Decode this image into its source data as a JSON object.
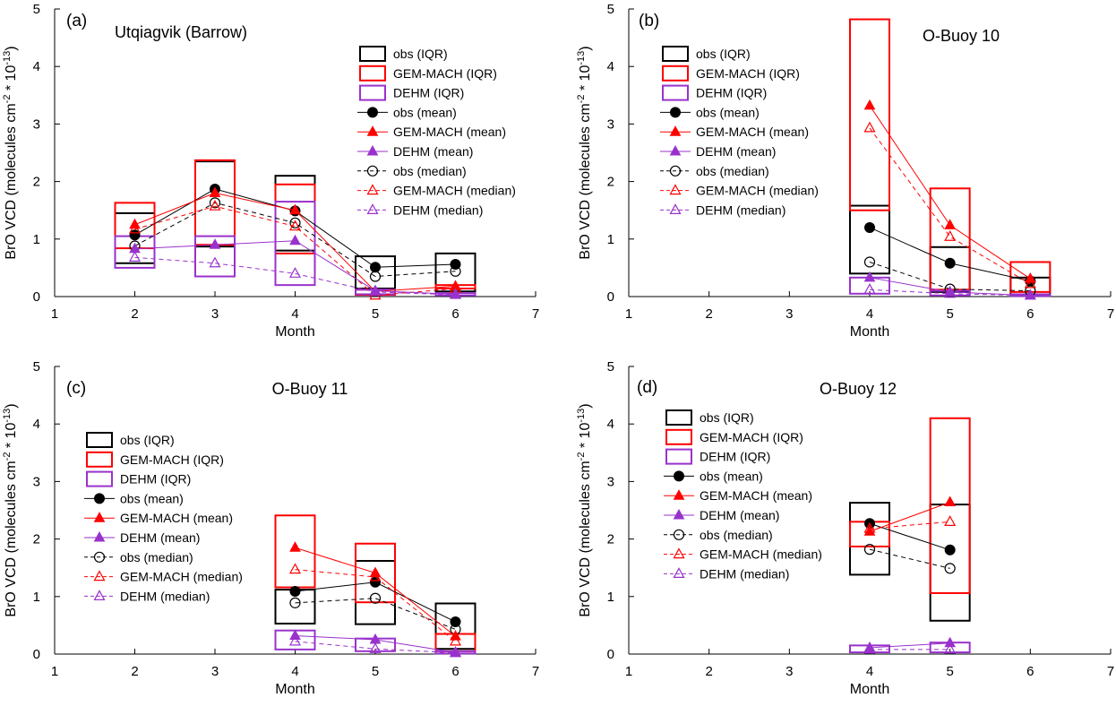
{
  "figure": {
    "y_axis_label": "BrO VCD (molecules cm",
    "y_axis_label_sup1": "-2",
    "y_axis_label_mid": " * 10",
    "y_axis_label_sup2": "-13",
    "y_axis_label_end": ")",
    "x_axis_label": "Month"
  },
  "legend": {
    "obs_iqr": "obs (IQR)",
    "gem_iqr": "GEM-MACH (IQR)",
    "dehm_iqr": "DEHM (IQR)",
    "obs_mean": "obs (mean)",
    "gem_mean": "GEM-MACH (mean)",
    "dehm_mean": "DEHM (mean)",
    "obs_median": "obs (median)",
    "gem_median": "GEM-MACH (median)",
    "dehm_median": "DEHM (median)"
  },
  "colors": {
    "obs": "#000000",
    "gem": "#ff0000",
    "dehm": "#9932cc"
  },
  "chart_data": [
    {
      "type": "box-line",
      "tag": "(a)",
      "title": "Utqiagvik (Barrow)",
      "xlim": [
        1,
        7
      ],
      "ylim": [
        0,
        5
      ],
      "xticks": [
        1,
        2,
        3,
        4,
        5,
        6,
        7
      ],
      "yticks": [
        0,
        1,
        2,
        3,
        4,
        5
      ],
      "months": [
        2,
        3,
        4,
        5,
        6
      ],
      "series": {
        "obs": {
          "q1": [
            0.58,
            0.87,
            0.8,
            0.14,
            0.09
          ],
          "q3": [
            1.45,
            2.35,
            2.1,
            0.7,
            0.75
          ],
          "mean": [
            1.07,
            1.87,
            1.49,
            0.51,
            0.56
          ],
          "median": [
            0.88,
            1.63,
            1.28,
            0.35,
            0.44
          ]
        },
        "gem": {
          "q1": [
            0.84,
            0.9,
            0.75,
            0.03,
            0.14
          ],
          "q3": [
            1.63,
            2.37,
            1.95,
            0.12,
            0.2
          ],
          "mean": [
            1.25,
            1.8,
            1.5,
            0.09,
            0.18
          ],
          "median": [
            1.17,
            1.57,
            1.22,
            0.02,
            0.14
          ]
        },
        "dehm": {
          "q1": [
            0.5,
            0.35,
            0.2,
            0.04,
            0.02
          ],
          "q3": [
            1.05,
            1.05,
            1.65,
            0.12,
            0.06
          ],
          "mean": [
            0.83,
            0.9,
            0.97,
            0.1,
            0.04
          ],
          "median": [
            0.68,
            0.58,
            0.4,
            0.08,
            0.03
          ]
        }
      }
    },
    {
      "type": "box-line",
      "tag": "(b)",
      "title": "O-Buoy 10",
      "xlim": [
        1,
        7
      ],
      "ylim": [
        0,
        5
      ],
      "xticks": [
        1,
        2,
        3,
        4,
        5,
        6,
        7
      ],
      "yticks": [
        0,
        1,
        2,
        3,
        4,
        5
      ],
      "months": [
        4,
        5,
        6
      ],
      "series": {
        "obs": {
          "q1": [
            0.4,
            0.08,
            0.03
          ],
          "q3": [
            1.58,
            0.86,
            0.33
          ],
          "mean": [
            1.2,
            0.58,
            0.27
          ],
          "median": [
            0.6,
            0.13,
            0.1
          ]
        },
        "gem": {
          "q1": [
            1.5,
            0.12,
            0.08
          ],
          "q3": [
            4.82,
            1.88,
            0.6
          ],
          "mean": [
            3.32,
            1.24,
            0.31
          ],
          "median": [
            2.93,
            1.04,
            0.22
          ]
        },
        "dehm": {
          "q1": [
            0.05,
            0.02,
            0.01
          ],
          "q3": [
            0.33,
            0.1,
            0.04
          ],
          "mean": [
            0.33,
            0.08,
            0.02
          ],
          "median": [
            0.12,
            0.05,
            0.02
          ]
        }
      }
    },
    {
      "type": "box-line",
      "tag": "(c)",
      "title": "O-Buoy 11",
      "xlim": [
        1,
        7
      ],
      "ylim": [
        0,
        5
      ],
      "xticks": [
        1,
        2,
        3,
        4,
        5,
        6,
        7
      ],
      "yticks": [
        0,
        1,
        2,
        3,
        4,
        5
      ],
      "months": [
        4,
        5,
        6
      ],
      "series": {
        "obs": {
          "q1": [
            0.53,
            0.52,
            0.09
          ],
          "q3": [
            1.12,
            1.62,
            0.88
          ],
          "mean": [
            1.09,
            1.25,
            0.56
          ],
          "median": [
            0.89,
            0.97,
            0.43
          ]
        },
        "gem": {
          "q1": [
            1.16,
            0.9,
            0.05
          ],
          "q3": [
            2.41,
            1.92,
            0.35
          ],
          "mean": [
            1.85,
            1.41,
            0.31
          ],
          "median": [
            1.47,
            1.34,
            0.22
          ]
        },
        "dehm": {
          "q1": [
            0.08,
            0.05,
            0.01
          ],
          "q3": [
            0.41,
            0.27,
            0.05
          ],
          "mean": [
            0.32,
            0.25,
            0.03
          ],
          "median": [
            0.22,
            0.09,
            0.02
          ]
        }
      }
    },
    {
      "type": "box-line",
      "tag": "(d)",
      "title": "O-Buoy 12",
      "xlim": [
        1,
        7
      ],
      "ylim": [
        0,
        5
      ],
      "xticks": [
        1,
        2,
        3,
        4,
        5,
        6,
        7
      ],
      "yticks": [
        0,
        1,
        2,
        3,
        4,
        5
      ],
      "months": [
        4,
        5
      ],
      "series": {
        "obs": {
          "q1": [
            1.38,
            0.58
          ],
          "q3": [
            2.63,
            2.6
          ],
          "mean": [
            2.27,
            1.81
          ],
          "median": [
            1.82,
            1.49
          ]
        },
        "gem": {
          "q1": [
            1.87,
            1.06
          ],
          "q3": [
            2.3,
            4.1
          ],
          "mean": [
            2.13,
            2.64
          ],
          "median": [
            2.18,
            2.3
          ]
        },
        "dehm": {
          "q1": [
            0.03,
            0.03
          ],
          "q3": [
            0.15,
            0.2
          ],
          "mean": [
            0.11,
            0.19
          ],
          "median": [
            0.08,
            0.08
          ]
        }
      }
    }
  ]
}
